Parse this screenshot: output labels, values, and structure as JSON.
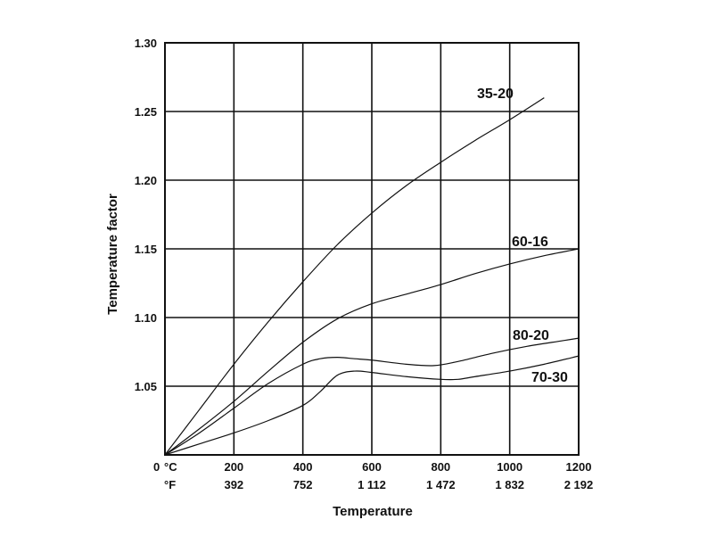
{
  "chart_data": {
    "type": "line",
    "xlabel": "Temperature",
    "ylabel": "Temperature factor",
    "xlim": [
      0,
      1200
    ],
    "ylim": [
      1.0,
      1.3
    ],
    "grid": true,
    "origin_label": "0",
    "x_unit_primary": "°C",
    "x_unit_secondary": "°F",
    "x_ticks": [
      200,
      400,
      600,
      800,
      1000,
      1200
    ],
    "x_tick_labels": [
      "200",
      "400",
      "600",
      "800",
      "1000",
      "1200"
    ],
    "x_tick_labels_secondary": [
      "392",
      "752",
      "1 112",
      "1 472",
      "1 832",
      "2 192"
    ],
    "y_ticks": [
      1.05,
      1.1,
      1.15,
      1.2,
      1.25,
      1.3
    ],
    "y_tick_labels": [
      "1.05",
      "1.10",
      "1.15",
      "1.20",
      "1.25",
      "1.30"
    ],
    "series": [
      {
        "name": "35-20",
        "x": [
          0,
          100,
          200,
          300,
          400,
          500,
          600,
          700,
          800,
          900,
          1000,
          1100
        ],
        "y": [
          1.0,
          1.033,
          1.066,
          1.097,
          1.126,
          1.153,
          1.176,
          1.196,
          1.213,
          1.229,
          1.244,
          1.26
        ]
      },
      {
        "name": "60-16",
        "x": [
          0,
          100,
          200,
          300,
          400,
          500,
          600,
          700,
          800,
          900,
          1000,
          1100,
          1200
        ],
        "y": [
          1.0,
          1.019,
          1.039,
          1.061,
          1.082,
          1.099,
          1.11,
          1.117,
          1.124,
          1.132,
          1.139,
          1.145,
          1.15
        ]
      },
      {
        "name": "80-20",
        "x": [
          0,
          100,
          200,
          300,
          400,
          450,
          500,
          550,
          600,
          700,
          780,
          850,
          950,
          1050,
          1150,
          1200
        ],
        "y": [
          1.0,
          1.016,
          1.034,
          1.052,
          1.066,
          1.07,
          1.071,
          1.07,
          1.069,
          1.066,
          1.065,
          1.068,
          1.074,
          1.079,
          1.083,
          1.085
        ]
      },
      {
        "name": "70-30",
        "x": [
          0,
          100,
          200,
          300,
          400,
          450,
          500,
          550,
          600,
          700,
          800,
          850,
          900,
          1000,
          1100,
          1200
        ],
        "y": [
          1.0,
          1.008,
          1.016,
          1.025,
          1.036,
          1.046,
          1.058,
          1.061,
          1.06,
          1.057,
          1.055,
          1.055,
          1.057,
          1.061,
          1.066,
          1.072
        ]
      }
    ]
  }
}
